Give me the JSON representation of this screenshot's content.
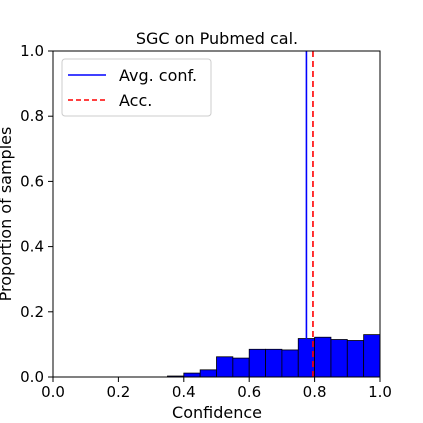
{
  "chart_data": {
    "type": "bar",
    "title": "SGC on Pubmed cal.",
    "xlabel": "Confidence",
    "ylabel": "Proportion of samples",
    "xlim": [
      0.0,
      1.0
    ],
    "ylim": [
      0.0,
      1.0
    ],
    "xticks": [
      "0.0",
      "0.2",
      "0.4",
      "0.6",
      "0.8",
      "1.0"
    ],
    "yticks": [
      "0.0",
      "0.2",
      "0.4",
      "0.6",
      "0.8",
      "1.0"
    ],
    "grid": false,
    "bin_width": 0.05,
    "bins": [
      {
        "x": 0.35,
        "value": 0.003
      },
      {
        "x": 0.4,
        "value": 0.012
      },
      {
        "x": 0.45,
        "value": 0.022
      },
      {
        "x": 0.5,
        "value": 0.062
      },
      {
        "x": 0.55,
        "value": 0.058
      },
      {
        "x": 0.6,
        "value": 0.085
      },
      {
        "x": 0.65,
        "value": 0.085
      },
      {
        "x": 0.7,
        "value": 0.083
      },
      {
        "x": 0.75,
        "value": 0.118
      },
      {
        "x": 0.8,
        "value": 0.122
      },
      {
        "x": 0.85,
        "value": 0.115
      },
      {
        "x": 0.9,
        "value": 0.112
      },
      {
        "x": 0.95,
        "value": 0.13
      }
    ],
    "bar_color": "#0000ff",
    "reference_lines": [
      {
        "name": "Avg. conf.",
        "x": 0.775,
        "color": "#0000ff",
        "style": "solid"
      },
      {
        "name": "Acc.",
        "x": 0.795,
        "color": "#ff0000",
        "style": "dashed"
      }
    ],
    "legend_position": "top-left"
  }
}
